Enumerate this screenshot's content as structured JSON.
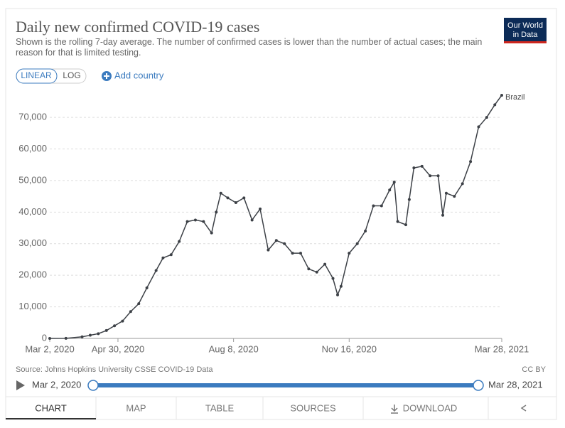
{
  "chart_data": {
    "type": "line",
    "title": "Daily new confirmed COVID-19 cases",
    "subtitle": "Shown is the rolling 7-day average. The number of confirmed cases is lower than the number of actual cases; the main reason for that is limited testing.",
    "source": "Source: Johns Hopkins University CSSE COVID-19 Data",
    "license": "CC BY",
    "x": [
      "2020-03-02",
      "2020-03-16",
      "2020-03-30",
      "2020-04-06",
      "2020-04-13",
      "2020-04-20",
      "2020-04-27",
      "2020-05-04",
      "2020-05-11",
      "2020-05-18",
      "2020-05-25",
      "2020-06-02",
      "2020-06-08",
      "2020-06-15",
      "2020-06-22",
      "2020-06-29",
      "2020-07-06",
      "2020-07-13",
      "2020-07-20",
      "2020-07-24",
      "2020-07-28",
      "2020-08-03",
      "2020-08-10",
      "2020-08-17",
      "2020-08-24",
      "2020-08-31",
      "2020-09-07",
      "2020-09-14",
      "2020-09-21",
      "2020-09-28",
      "2020-10-05",
      "2020-10-12",
      "2020-10-19",
      "2020-10-26",
      "2020-11-02",
      "2020-11-06",
      "2020-11-09",
      "2020-11-16",
      "2020-11-23",
      "2020-11-30",
      "2020-12-07",
      "2020-12-14",
      "2020-12-21",
      "2020-12-25",
      "2020-12-28",
      "2021-01-04",
      "2021-01-07",
      "2021-01-11",
      "2021-01-18",
      "2021-01-25",
      "2021-02-01",
      "2021-02-05",
      "2021-02-08",
      "2021-02-15",
      "2021-02-22",
      "2021-03-01",
      "2021-03-08",
      "2021-03-15",
      "2021-03-22",
      "2021-03-28"
    ],
    "series": [
      {
        "name": "Brazil",
        "color": "#3c4046",
        "values": [
          0,
          30,
          500,
          1000,
          1500,
          2500,
          4000,
          5500,
          8500,
          11000,
          16000,
          21500,
          25500,
          26500,
          30700,
          37000,
          37500,
          37000,
          33400,
          40000,
          46000,
          44500,
          43000,
          44500,
          37500,
          41000,
          28000,
          31000,
          30000,
          27000,
          27000,
          22000,
          21000,
          23500,
          19000,
          13800,
          16500,
          27000,
          30000,
          34000,
          42000,
          42000,
          47000,
          49500,
          37000,
          36000,
          44000,
          54000,
          54500,
          51500,
          51500,
          39000,
          46000,
          45000,
          49000,
          56000,
          67000,
          70000,
          74000,
          77000
        ]
      }
    ],
    "xlim": [
      "2020-03-02",
      "2021-03-28"
    ],
    "xticks": [
      {
        "value": "2020-03-02",
        "label": "Mar 2, 2020"
      },
      {
        "value": "2020-04-30",
        "label": "Apr 30, 2020"
      },
      {
        "value": "2020-08-08",
        "label": "Aug 8, 2020"
      },
      {
        "value": "2020-11-16",
        "label": "Nov 16, 2020"
      },
      {
        "value": "2021-03-28",
        "label": "Mar 28, 2021"
      }
    ],
    "ylim": [
      0,
      77000
    ],
    "yticks": [
      0,
      {
        "value": 10000,
        "label": "10,000"
      },
      {
        "value": 20000,
        "label": "20,000"
      },
      {
        "value": 30000,
        "label": "30,000"
      },
      {
        "value": 40000,
        "label": "40,000"
      },
      {
        "value": 50000,
        "label": "50,000"
      },
      {
        "value": 60000,
        "label": "60,000"
      },
      {
        "value": 70000,
        "label": "70,000"
      }
    ],
    "grid": true
  },
  "ui": {
    "logo": [
      "Our World",
      "in Data"
    ],
    "scale_buttons": [
      "LINEAR",
      "LOG"
    ],
    "add_country": "Add country",
    "timeline": {
      "start": "Mar 2, 2020",
      "end": "Mar 28, 2021"
    },
    "tabs": [
      "CHART",
      "MAP",
      "TABLE",
      "SOURCES",
      "DOWNLOAD"
    ]
  }
}
